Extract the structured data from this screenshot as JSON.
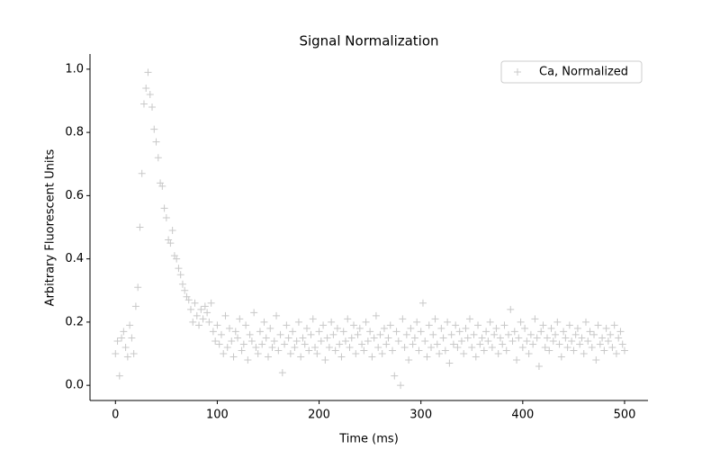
{
  "chart_data": {
    "type": "scatter",
    "title": "Signal Normalization",
    "xlabel": "Time (ms)",
    "ylabel": "Arbitrary Fluorescent Units",
    "xlim": [
      -25,
      523
    ],
    "ylim": [
      -0.048,
      1.048
    ],
    "xticks": [
      0,
      100,
      200,
      300,
      400,
      500
    ],
    "yticks": [
      {
        "value": 0,
        "label": "0.0"
      },
      {
        "value": 0.2,
        "label": "0.2"
      },
      {
        "value": 0.4,
        "label": "0.4"
      },
      {
        "value": 0.6,
        "label": "0.6"
      },
      {
        "value": 0.8,
        "label": "0.8"
      },
      {
        "value": 1,
        "label": "1.0"
      }
    ],
    "legend": "upper right",
    "marker": "+",
    "series": [
      {
        "name": "Ca, Normalized",
        "color": "#c8c8c8",
        "x": [
          0,
          2,
          4,
          6,
          8,
          10,
          12,
          14,
          16,
          18,
          20,
          22,
          24,
          26,
          28,
          30,
          32,
          34,
          36,
          38,
          40,
          42,
          44,
          46,
          48,
          50,
          52,
          54,
          56,
          58,
          60,
          62,
          64,
          66,
          68,
          70,
          72,
          74,
          76,
          78,
          80,
          82,
          84,
          86,
          88,
          90,
          92,
          94,
          96,
          98,
          100,
          102,
          104,
          106,
          108,
          110,
          112,
          114,
          116,
          118,
          120,
          122,
          124,
          126,
          128,
          130,
          132,
          134,
          136,
          138,
          140,
          142,
          144,
          146,
          148,
          150,
          152,
          154,
          156,
          158,
          160,
          162,
          164,
          166,
          168,
          170,
          172,
          174,
          176,
          178,
          180,
          182,
          184,
          186,
          188,
          190,
          192,
          194,
          196,
          198,
          200,
          202,
          204,
          206,
          208,
          210,
          212,
          214,
          216,
          218,
          220,
          222,
          224,
          226,
          228,
          230,
          232,
          234,
          236,
          238,
          240,
          242,
          244,
          246,
          248,
          250,
          252,
          254,
          256,
          258,
          260,
          262,
          264,
          266,
          268,
          270,
          272,
          274,
          276,
          278,
          280,
          282,
          284,
          286,
          288,
          290,
          292,
          294,
          296,
          298,
          300,
          302,
          304,
          306,
          308,
          310,
          312,
          314,
          316,
          318,
          320,
          322,
          324,
          326,
          328,
          330,
          332,
          334,
          336,
          338,
          340,
          342,
          344,
          346,
          348,
          350,
          352,
          354,
          356,
          358,
          360,
          362,
          364,
          366,
          368,
          370,
          372,
          374,
          376,
          378,
          380,
          382,
          384,
          386,
          388,
          390,
          392,
          394,
          396,
          398,
          400,
          402,
          404,
          406,
          408,
          410,
          412,
          414,
          416,
          418,
          420,
          422,
          424,
          426,
          428,
          430,
          432,
          434,
          436,
          438,
          440,
          442,
          444,
          446,
          448,
          450,
          452,
          454,
          456,
          458,
          460,
          462,
          464,
          466,
          468,
          470,
          472,
          474,
          476,
          478,
          480,
          482,
          484,
          486,
          488,
          490,
          492,
          494,
          496,
          498,
          500
        ],
        "values": [
          0.1,
          0.14,
          0.03,
          0.15,
          0.17,
          0.12,
          0.09,
          0.19,
          0.15,
          0.1,
          0.25,
          0.31,
          0.5,
          0.67,
          0.89,
          0.94,
          0.99,
          0.92,
          0.88,
          0.81,
          0.77,
          0.72,
          0.64,
          0.63,
          0.56,
          0.53,
          0.46,
          0.45,
          0.49,
          0.41,
          0.4,
          0.37,
          0.35,
          0.32,
          0.3,
          0.28,
          0.27,
          0.24,
          0.2,
          0.26,
          0.22,
          0.19,
          0.24,
          0.21,
          0.25,
          0.23,
          0.2,
          0.26,
          0.17,
          0.14,
          0.19,
          0.13,
          0.16,
          0.1,
          0.22,
          0.12,
          0.18,
          0.14,
          0.09,
          0.17,
          0.15,
          0.21,
          0.11,
          0.13,
          0.19,
          0.08,
          0.16,
          0.14,
          0.23,
          0.12,
          0.1,
          0.17,
          0.13,
          0.2,
          0.15,
          0.09,
          0.18,
          0.12,
          0.14,
          0.22,
          0.11,
          0.16,
          0.04,
          0.13,
          0.19,
          0.15,
          0.1,
          0.17,
          0.12,
          0.14,
          0.2,
          0.09,
          0.15,
          0.13,
          0.18,
          0.11,
          0.16,
          0.21,
          0.12,
          0.1,
          0.17,
          0.14,
          0.19,
          0.08,
          0.15,
          0.12,
          0.2,
          0.16,
          0.11,
          0.18,
          0.13,
          0.09,
          0.17,
          0.14,
          0.21,
          0.12,
          0.15,
          0.19,
          0.1,
          0.16,
          0.18,
          0.13,
          0.11,
          0.2,
          0.14,
          0.17,
          0.09,
          0.15,
          0.22,
          0.12,
          0.16,
          0.1,
          0.18,
          0.13,
          0.15,
          0.19,
          0.11,
          0.03,
          0.17,
          0.14,
          0.0,
          0.21,
          0.12,
          0.16,
          0.08,
          0.18,
          0.13,
          0.15,
          0.2,
          0.11,
          0.17,
          0.26,
          0.14,
          0.09,
          0.19,
          0.12,
          0.16,
          0.21,
          0.13,
          0.1,
          0.18,
          0.15,
          0.11,
          0.2,
          0.07,
          0.16,
          0.13,
          0.19,
          0.12,
          0.17,
          0.14,
          0.1,
          0.18,
          0.15,
          0.21,
          0.12,
          0.16,
          0.09,
          0.19,
          0.13,
          0.15,
          0.11,
          0.17,
          0.14,
          0.2,
          0.12,
          0.16,
          0.18,
          0.1,
          0.15,
          0.13,
          0.19,
          0.11,
          0.16,
          0.24,
          0.14,
          0.17,
          0.08,
          0.15,
          0.2,
          0.12,
          0.18,
          0.14,
          0.1,
          0.16,
          0.13,
          0.21,
          0.15,
          0.06,
          0.17,
          0.19,
          0.12,
          0.15,
          0.11,
          0.18,
          0.14,
          0.16,
          0.2,
          0.13,
          0.09,
          0.17,
          0.15,
          0.12,
          0.19,
          0.14,
          0.11,
          0.16,
          0.18,
          0.13,
          0.15,
          0.1,
          0.2,
          0.14,
          0.17,
          0.12,
          0.16,
          0.08,
          0.19,
          0.13,
          0.15,
          0.11,
          0.18,
          0.14,
          0.16,
          0.12,
          0.19,
          0.1,
          0.15,
          0.17,
          0.13,
          0.11
        ]
      }
    ]
  }
}
